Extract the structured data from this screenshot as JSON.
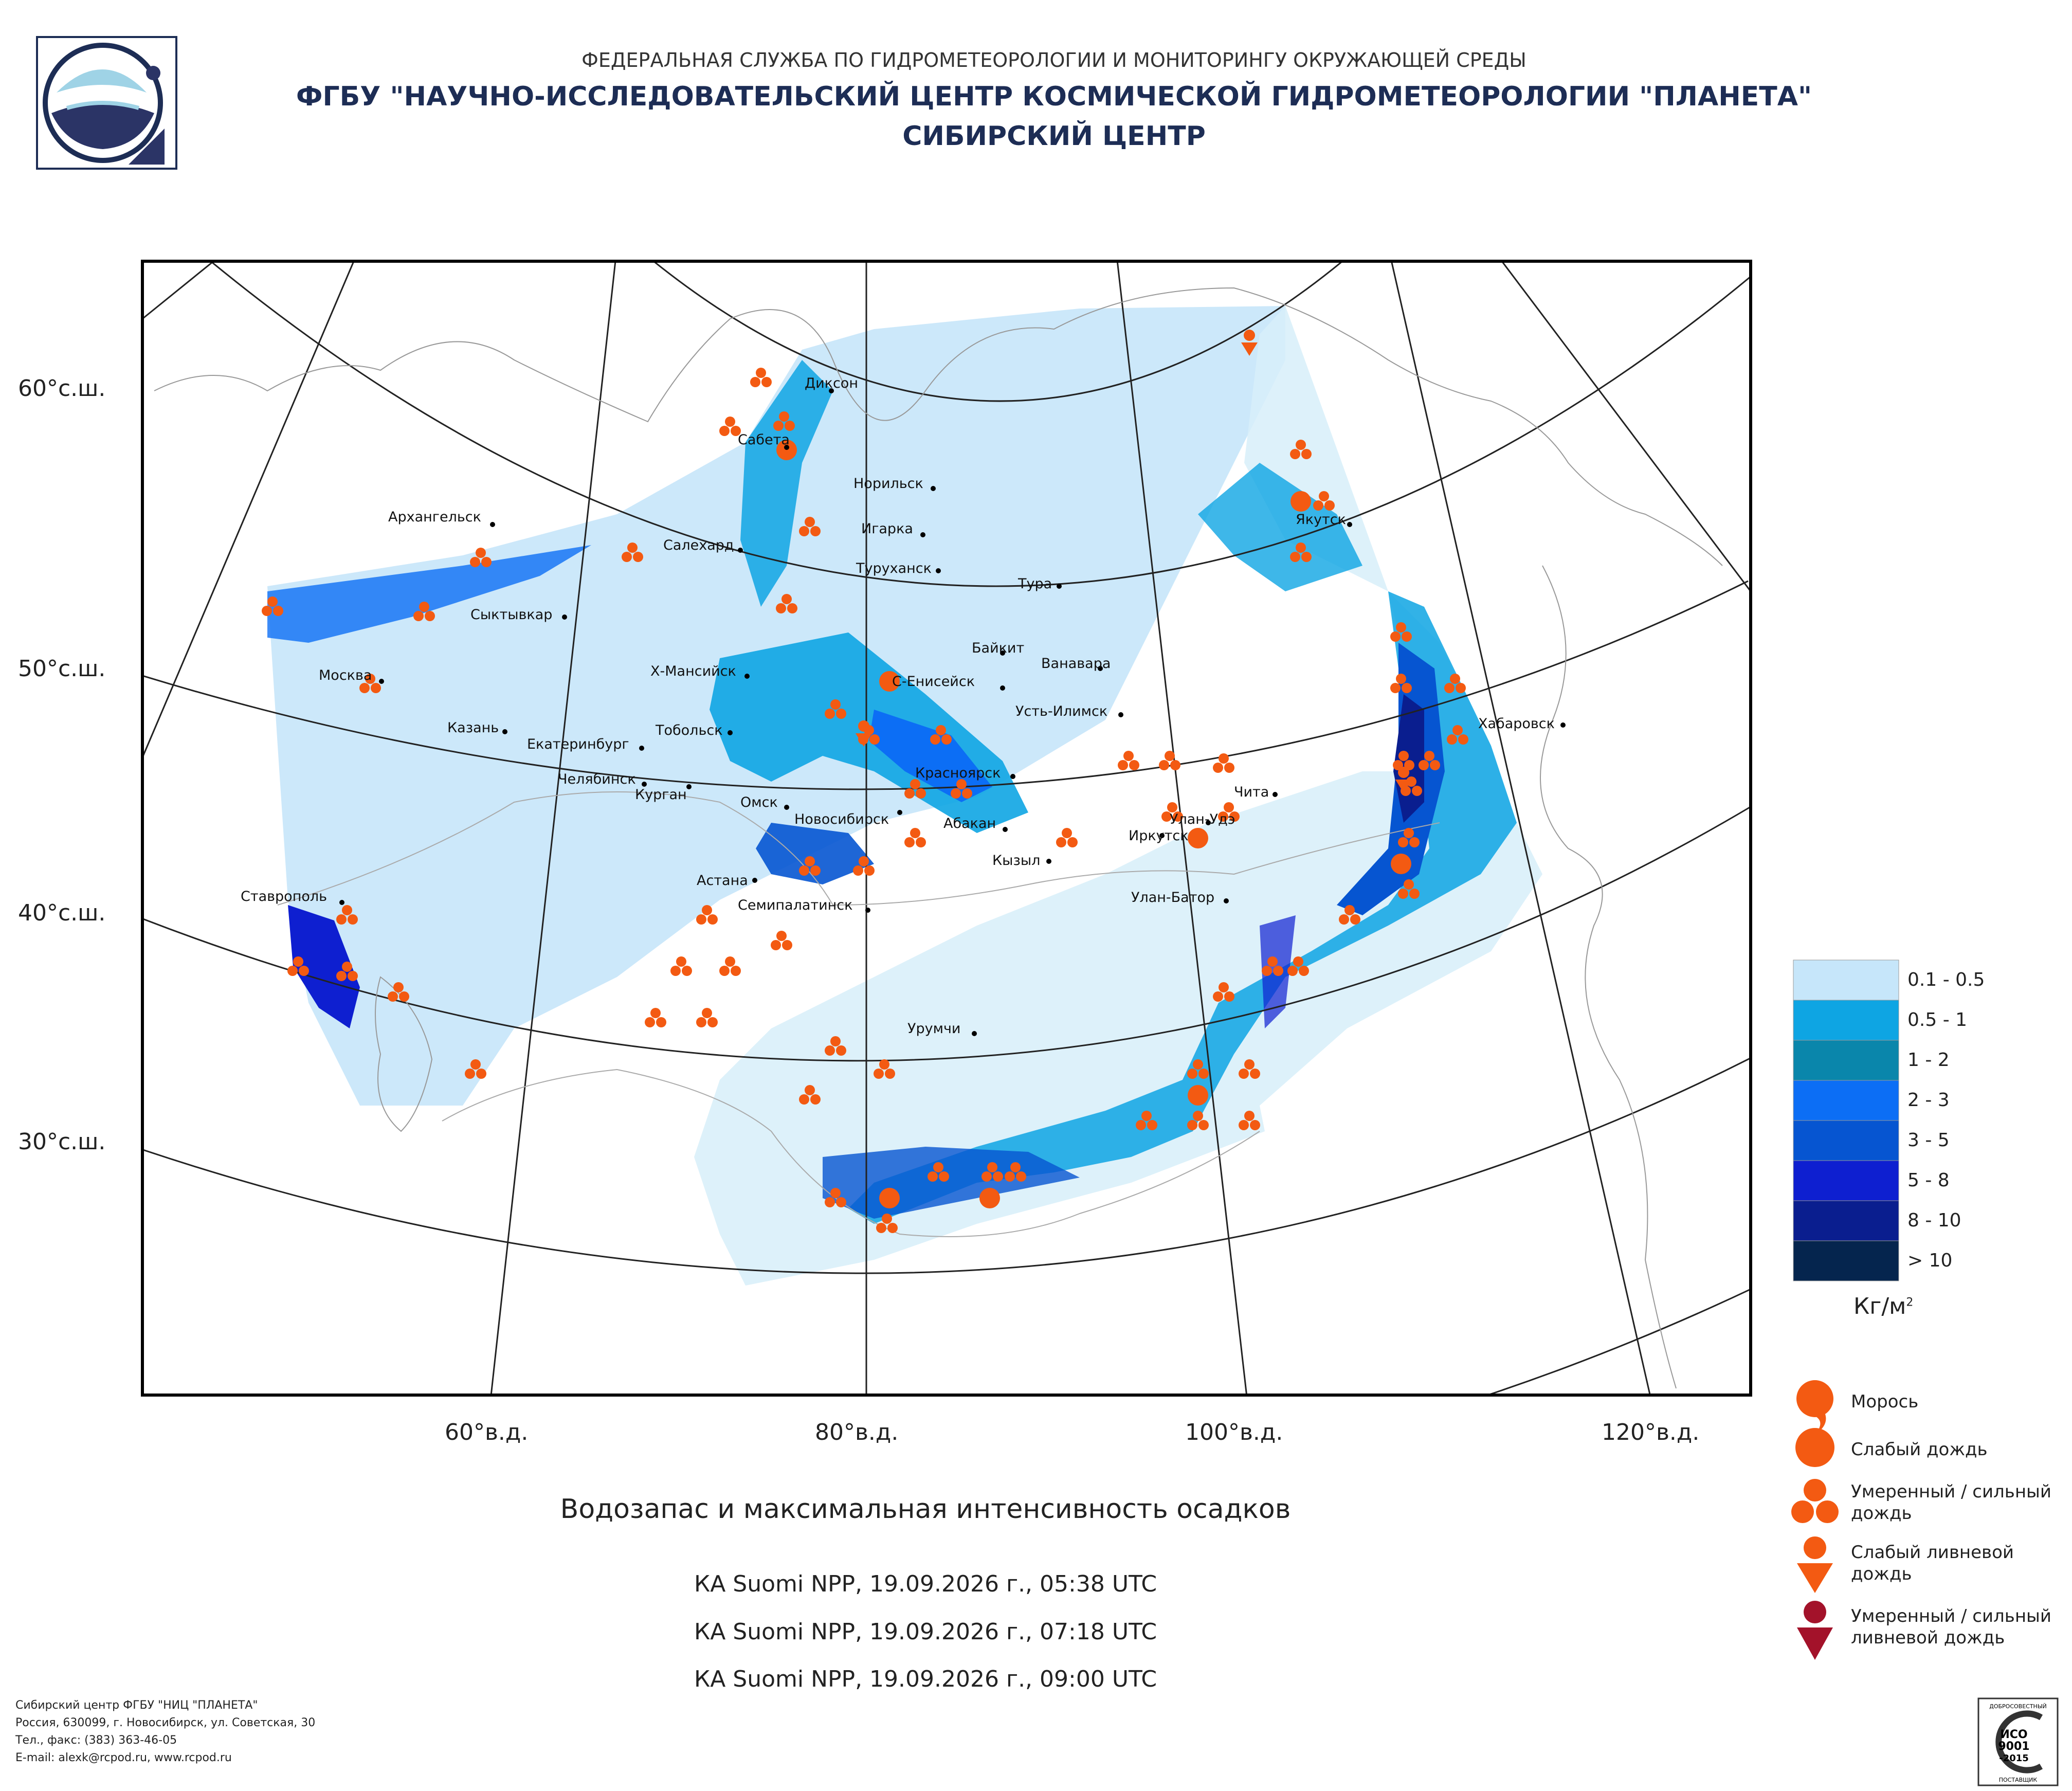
{
  "header": {
    "line1": "ФЕДЕРАЛЬНАЯ СЛУЖБА ПО ГИДРОМЕТЕОРОЛОГИИ И МОНИТОРИНГУ ОКРУЖАЮЩЕЙ СРЕДЫ",
    "line2": "ФГБУ \"НАУЧНО-ИССЛЕДОВАТЕЛЬСКИЙ ЦЕНТР КОСМИЧЕСКОЙ ГИДРОМЕТЕОРОЛОГИИ \"ПЛАНЕТА\"",
    "line3": "СИБИРСКИЙ ЦЕНТР"
  },
  "map": {
    "lat_labels": [
      "60°с.ш.",
      "50°с.ш.",
      "40°с.ш.",
      "30°с.ш."
    ],
    "lon_labels": [
      "60°в.д.",
      "80°в.д.",
      "100°в.д.",
      "120°в.д."
    ],
    "cities": [
      "Диксон",
      "Сабета",
      "Норильск",
      "Игарка",
      "Архангельск",
      "Салехард",
      "Туруханск",
      "Тура",
      "Сыктывкар",
      "Байкит",
      "Ванавара",
      "Х-Мансийск",
      "С-Енисейск",
      "Москва",
      "Усть-Илимск",
      "Казань",
      "Екатеринбург",
      "Тобольск",
      "Челябинск",
      "Курган",
      "Омск",
      "Красноярск",
      "Новосибирск",
      "Абакан",
      "Улан-Удэ",
      "Иркутск",
      "Чита",
      "Кызыл",
      "Астана",
      "Улан-Батор",
      "Ставрополь",
      "Семипалатинск",
      "Урумчи",
      "Якутск",
      "Хабаровск"
    ]
  },
  "map_title": "Водозапас и максимальная интенсивность осадков",
  "satellite_passes": [
    "КА Suomi NPP, 19.09.2026 г., 05:38 UTC",
    "КА Suomi NPP, 19.09.2026 г., 07:18 UTC",
    "КА Suomi NPP, 19.09.2026 г., 09:00 UTC"
  ],
  "legend": {
    "classes": [
      {
        "label": "0.1 - 0.5",
        "color": "#c6e6fa"
      },
      {
        "label": "0.5 - 1",
        "color": "#0ea5e3"
      },
      {
        "label": "1 - 2",
        "color": "#0a86ab"
      },
      {
        "label": "2 - 3",
        "color": "#0c6ef5"
      },
      {
        "label": "3 - 5",
        "color": "#0655d1"
      },
      {
        "label": "5 - 8",
        "color": "#0e1fd0"
      },
      {
        "label": "8 - 10",
        "color": "#0a1e8f"
      },
      {
        "label": "> 10",
        "color": "#05254e"
      }
    ],
    "units": "Кг/м",
    "units_sup": "2",
    "symbols": [
      {
        "label": "Морось",
        "icon": "drizzle-icon"
      },
      {
        "label": "Слабый дождь",
        "icon": "light-rain-icon"
      },
      {
        "label": "Умеренный / сильный дождь",
        "icon": "heavy-rain-icon"
      },
      {
        "label": "Слабый ливневой дождь",
        "icon": "light-shower-icon"
      },
      {
        "label": "Умеренный / сильный ливневой дождь",
        "icon": "heavy-shower-icon"
      }
    ],
    "symbol_color": "#f35a12",
    "shower_color": "#a3122a"
  },
  "footer": {
    "line1": "Сибирский центр ФГБУ \"НИЦ \"ПЛАНЕТА\"",
    "line2": "Россия, 630099, г. Новосибирск, ул. Советская, 30",
    "line3": "Тел., факс: (383) 363-46-05",
    "line4": "E-mail: alexk@rcpod.ru, www.rcpod.ru"
  },
  "iso_badge": {
    "top": "ДОБРОСОВЕСТНЫЙ",
    "l1": "ИСО",
    "l2": "9001",
    "l3": "-2015",
    "bottom": "ПОСТАВЩИК"
  }
}
